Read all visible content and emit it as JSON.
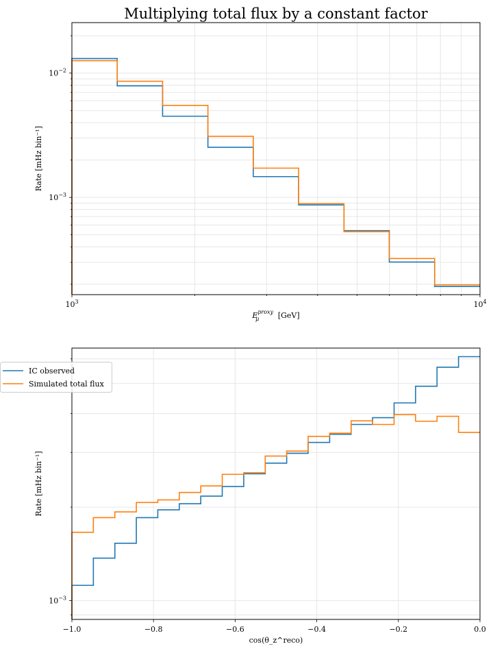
{
  "title": "Multiplying total flux by a constant factor",
  "colors": {
    "ic_observed": "#1f77b4",
    "simulated": "#ff7f0e",
    "grid": "#e6e6e6"
  },
  "chart_data": [
    {
      "type": "line",
      "drawstyle": "steps",
      "xscale": "log",
      "yscale": "log",
      "xlabel": "E_μ^proxy [GeV]",
      "xlabel_main": "E",
      "xlabel_sub": "μ",
      "xlabel_sup": "proxy",
      "xlabel_unit": "[GeV]",
      "ylabel": "Rate [mHz bin⁻¹]",
      "xlim": [
        1000,
        10000
      ],
      "ylim": [
        0.000165,
        0.0255
      ],
      "grid": true,
      "x_ticks": [
        {
          "value": 1000,
          "base": "10",
          "exp": "3"
        },
        {
          "value": 10000,
          "base": "10",
          "exp": "4"
        }
      ],
      "y_ticks": [
        {
          "value": 0.01,
          "base": "10",
          "exp": "−2"
        },
        {
          "value": 0.001,
          "base": "10",
          "exp": "−3"
        }
      ],
      "bin_edges": [
        1000,
        1291.5,
        1668.1,
        2154.4,
        2782.6,
        3593.8,
        4641.6,
        5994.8,
        7742.6,
        10000
      ],
      "series": [
        {
          "name": "IC observed",
          "color": "#1f77b4",
          "values": [
            0.0131,
            0.0079,
            0.0045,
            0.00253,
            0.00147,
            0.00087,
            0.00054,
            0.000302,
            0.000192
          ]
        },
        {
          "name": "Simulated total flux",
          "color": "#ff7f0e",
          "values": [
            0.0126,
            0.0086,
            0.0055,
            0.0031,
            0.00172,
            0.00089,
            0.00053,
            0.000322,
            0.000198
          ]
        }
      ]
    },
    {
      "type": "line",
      "drawstyle": "steps",
      "xscale": "linear",
      "yscale": "log",
      "xlabel": "cos(θ_z^reco)",
      "ylabel": "Rate [mHz bin⁻¹]",
      "xlim": [
        -1.0,
        0.0
      ],
      "ylim": [
        0.00087,
        0.0065
      ],
      "grid": true,
      "legend": "upper left, outside plot",
      "x_ticks": [
        {
          "value": -1.0,
          "label": "−1.0"
        },
        {
          "value": -0.8,
          "label": "−0.8"
        },
        {
          "value": -0.6,
          "label": "−0.6"
        },
        {
          "value": -0.4,
          "label": "−0.4"
        },
        {
          "value": -0.2,
          "label": "−0.2"
        },
        {
          "value": 0.0,
          "label": "0.0"
        }
      ],
      "y_ticks": [
        {
          "value": 0.001,
          "base": "10",
          "exp": "−3"
        }
      ],
      "bin_edges": [
        -1.0,
        -0.9474,
        -0.8947,
        -0.8421,
        -0.7895,
        -0.7368,
        -0.6842,
        -0.6316,
        -0.5789,
        -0.5263,
        -0.4737,
        -0.4211,
        -0.3684,
        -0.3158,
        -0.2632,
        -0.2105,
        -0.1579,
        -0.1053,
        -0.0526,
        0.0
      ],
      "series": [
        {
          "name": "IC observed",
          "color": "#1f77b4",
          "values": [
            0.00112,
            0.00137,
            0.00153,
            0.00185,
            0.00196,
            0.00205,
            0.00217,
            0.00233,
            0.00256,
            0.00277,
            0.00298,
            0.00323,
            0.00343,
            0.00369,
            0.00388,
            0.00433,
            0.0049,
            0.00564,
            0.0061
          ]
        },
        {
          "name": "Simulated total flux",
          "color": "#ff7f0e",
          "values": [
            0.00166,
            0.00185,
            0.00193,
            0.00207,
            0.00211,
            0.00223,
            0.00234,
            0.00255,
            0.00258,
            0.00292,
            0.00303,
            0.00338,
            0.00346,
            0.00379,
            0.00369,
            0.00397,
            0.00378,
            0.00392,
            0.00348
          ]
        }
      ]
    }
  ]
}
